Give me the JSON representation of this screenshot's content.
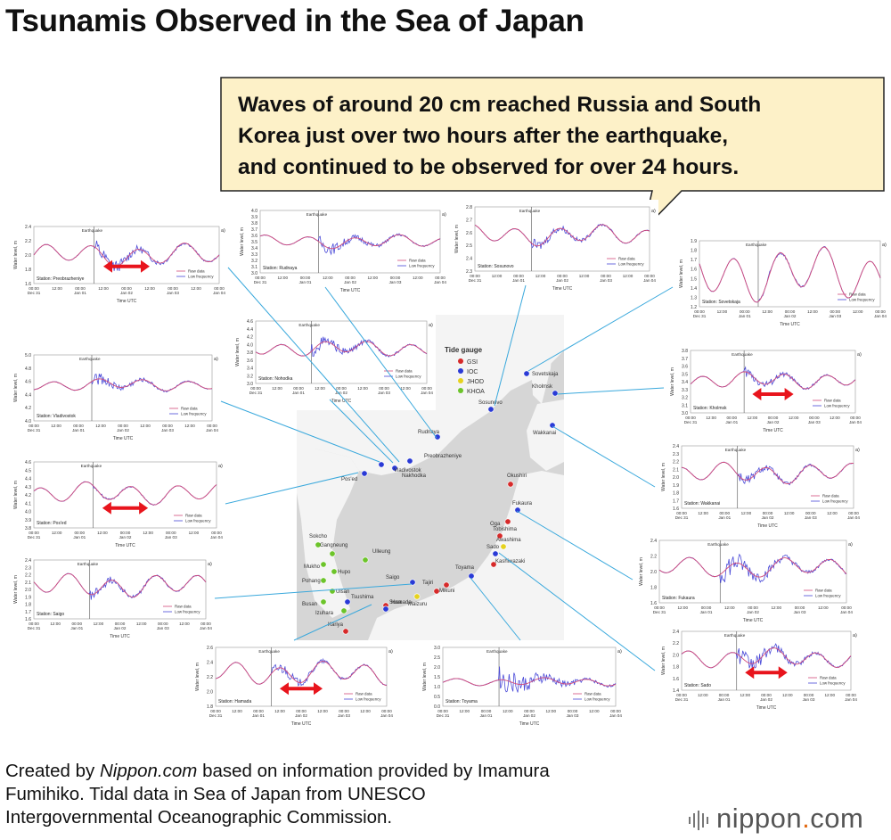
{
  "title": "Tsunamis Observed in the Sea of Japan",
  "callout": {
    "lines": [
      "Waves of around 20 cm reached Russia and South",
      "Korea just over two hours after the earthquake,",
      "and continued to be observed for over 24 hours."
    ]
  },
  "footer": {
    "line1_prefix": "Created by ",
    "line1_em": "Nippon.com",
    "line1_suffix": " based on information provided by Imamura",
    "line2": "Fumihiko. Tidal data in Sea of Japan from UNESCO",
    "line3": "Intergovernmental Oceanographic Commission."
  },
  "logo": {
    "name": "nippon",
    "dot": ".",
    "tld": "com"
  },
  "colors": {
    "raw": "#4a4ad8",
    "low": "#d24b7a",
    "arrow": "#e8141c",
    "leader": "#39a8dc",
    "map_land": "#f4f4f4",
    "map_sea": "#d6d6d6"
  },
  "map": {
    "legend_title": "Tide gauge",
    "legend": [
      {
        "label": "GSI",
        "color": "#d62a2a"
      },
      {
        "label": "IOC",
        "color": "#2a3ad6"
      },
      {
        "label": "JHOD",
        "color": "#e6d21e"
      },
      {
        "label": "KHOA",
        "color": "#6cc42a"
      }
    ],
    "stations": [
      {
        "name": "Sovetskaja",
        "c": "#2a3ad6"
      },
      {
        "name": "Sosunovo",
        "c": "#2a3ad6"
      },
      {
        "name": "Kholmsk",
        "c": "#2a3ad6"
      },
      {
        "name": "Wakkanai",
        "c": "#2a3ad6"
      },
      {
        "name": "Rudnaya",
        "c": "#2a3ad6"
      },
      {
        "name": "Preobrazheniye",
        "c": "#2a3ad6"
      },
      {
        "name": "Nakhodka",
        "c": "#2a3ad6"
      },
      {
        "name": "Vladivostok",
        "c": "#2a3ad6"
      },
      {
        "name": "Pos'ed",
        "c": "#2a3ad6"
      },
      {
        "name": "Okushiri",
        "c": "#d62a2a"
      },
      {
        "name": "Fukaura",
        "c": "#2a3ad6"
      },
      {
        "name": "Oga",
        "c": "#d62a2a"
      },
      {
        "name": "Tobishima",
        "c": "#d62a2a"
      },
      {
        "name": "Awashima",
        "c": "#e6d21e"
      },
      {
        "name": "Sado",
        "c": "#2a3ad6"
      },
      {
        "name": "Kashiwazaki",
        "c": "#d62a2a"
      },
      {
        "name": "Toyama",
        "c": "#2a3ad6"
      },
      {
        "name": "Mikuni",
        "c": "#d62a2a"
      },
      {
        "name": "Tajiri",
        "c": "#d62a2a"
      },
      {
        "name": "Maizuru",
        "c": "#e6d21e"
      },
      {
        "name": "Saigo",
        "c": "#2a3ad6"
      },
      {
        "name": "Hamada",
        "c": "#d62a2a"
      },
      {
        "name": "Susa",
        "c": "#2a3ad6"
      },
      {
        "name": "Kariya",
        "c": "#d62a2a"
      },
      {
        "name": "Sokcho",
        "c": "#6cc42a"
      },
      {
        "name": "Ulleung",
        "c": "#6cc42a"
      },
      {
        "name": "Gangneung",
        "c": "#6cc42a"
      },
      {
        "name": "Mukho",
        "c": "#6cc42a"
      },
      {
        "name": "Hupo",
        "c": "#6cc42a"
      },
      {
        "name": "Pohang",
        "c": "#6cc42a"
      },
      {
        "name": "Ulsan",
        "c": "#6cc42a"
      },
      {
        "name": "Busan",
        "c": "#6cc42a"
      },
      {
        "name": "Tsushima",
        "c": "#2a3ad6"
      },
      {
        "name": "Izuhara",
        "c": "#6cc42a"
      }
    ]
  },
  "panel_common": {
    "xticks": [
      "00:00\nDec 31",
      "12:00",
      "00:00\nJan 01",
      "12:00",
      "00:00\nJan 02",
      "12:00",
      "00:00\nJan 03",
      "12:00",
      "00:00\nJan 04"
    ],
    "xlabel": "Time UTC",
    "ylabel": "Water level, m",
    "legend_raw": "Raw data",
    "legend_low": "Low frequency",
    "eq_label": "Earthquake",
    "panel_letter": "a)"
  },
  "chart_data": [
    {
      "type": "line",
      "station": "Station: Preobrazheniye",
      "ylim": [
        1.6,
        2.4
      ],
      "yticks": [
        "1.6",
        "1.8",
        "2.0",
        "2.2",
        "2.4"
      ],
      "base": 2.0,
      "amp": 0.12,
      "noise": 0.14,
      "arrow": true
    },
    {
      "type": "line",
      "station": "Station: Rudnaya",
      "ylim": [
        3.0,
        4.0
      ],
      "yticks": [
        "3.0",
        "3.1",
        "3.2",
        "3.3",
        "3.4",
        "3.5",
        "3.6",
        "3.7",
        "3.8",
        "3.9",
        "4.0"
      ],
      "base": 3.5,
      "amp": 0.08,
      "noise": 0.12,
      "arrow": false
    },
    {
      "type": "line",
      "station": "Station: Sosunovo",
      "ylim": [
        2.3,
        2.8
      ],
      "yticks": [
        "2.3",
        "2.4",
        "2.5",
        "2.6",
        "2.7",
        "2.8"
      ],
      "base": 2.58,
      "amp": 0.06,
      "noise": 0.05,
      "arrow": false
    },
    {
      "type": "line",
      "station": "Station: Sovetskaja",
      "ylim": [
        1.2,
        1.9
      ],
      "yticks": [
        "1.2",
        "1.3",
        "1.4",
        "1.5",
        "1.6",
        "1.7",
        "1.8",
        "1.9"
      ],
      "base": 1.55,
      "amp": 0.22,
      "noise": 0.03,
      "arrow": false
    },
    {
      "type": "line",
      "station": "Station: Nohodka",
      "ylim": [
        3.0,
        4.6
      ],
      "yticks": [
        "3.0",
        "3.2",
        "3.4",
        "3.6",
        "3.8",
        "4.0",
        "4.2",
        "4.4",
        "4.6"
      ],
      "base": 3.9,
      "amp": 0.15,
      "noise": 0.2,
      "arrow": false
    },
    {
      "type": "line",
      "station": "Station: Vladivostok",
      "ylim": [
        4.0,
        5.0
      ],
      "yticks": [
        "4.0",
        "4.2",
        "4.4",
        "4.6",
        "4.8",
        "5.0"
      ],
      "base": 4.55,
      "amp": 0.07,
      "noise": 0.1,
      "arrow": false
    },
    {
      "type": "line",
      "station": "Station: Kholmsk",
      "ylim": [
        3.0,
        3.8
      ],
      "yticks": [
        "3.0",
        "3.1",
        "3.2",
        "3.3",
        "3.4",
        "3.5",
        "3.6",
        "3.7",
        "3.8"
      ],
      "base": 3.42,
      "amp": 0.08,
      "noise": 0.08,
      "arrow": true
    },
    {
      "type": "line",
      "station": "Station: Pos'ed",
      "ylim": [
        3.8,
        4.6
      ],
      "yticks": [
        "3.8",
        "3.9",
        "4.0",
        "4.1",
        "4.2",
        "4.3",
        "4.4",
        "4.5",
        "4.6"
      ],
      "base": 4.22,
      "amp": 0.1,
      "noise": 0.02,
      "arrow": true
    },
    {
      "type": "line",
      "station": "Station: Wakkanai",
      "ylim": [
        1.6,
        2.4
      ],
      "yticks": [
        "1.6",
        "1.7",
        "1.8",
        "1.9",
        "2.0",
        "2.1",
        "2.2",
        "2.3",
        "2.4"
      ],
      "base": 2.05,
      "amp": 0.1,
      "noise": 0.08,
      "arrow": false
    },
    {
      "type": "line",
      "station": "Station: Saigo",
      "ylim": [
        1.6,
        2.4
      ],
      "yticks": [
        "1.6",
        "1.7",
        "1.8",
        "1.9",
        "2.0",
        "2.1",
        "2.2",
        "2.3",
        "2.4"
      ],
      "base": 2.05,
      "amp": 0.12,
      "noise": 0.08,
      "arrow": false
    },
    {
      "type": "line",
      "station": "Station: Fukaura",
      "ylim": [
        1.6,
        2.4
      ],
      "yticks": [
        "1.6",
        "1.8",
        "2.0",
        "2.2",
        "2.4"
      ],
      "base": 2.05,
      "amp": 0.1,
      "noise": 0.18,
      "arrow": false
    },
    {
      "type": "line",
      "station": "Station: Hamada",
      "ylim": [
        1.8,
        2.6
      ],
      "yticks": [
        "1.8",
        "2.0",
        "2.2",
        "2.4",
        "2.6"
      ],
      "base": 2.25,
      "amp": 0.12,
      "noise": 0.1,
      "arrow": true
    },
    {
      "type": "line",
      "station": "Station: Toyama",
      "ylim": [
        0.0,
        3.0
      ],
      "yticks": [
        "0.0",
        "0.5",
        "1.0",
        "1.5",
        "2.0",
        "2.5",
        "3.0"
      ],
      "base": 1.25,
      "amp": 0.15,
      "noise": 0.8,
      "arrow": false
    },
    {
      "type": "line",
      "station": "Station: Sado",
      "ylim": [
        1.4,
        2.4
      ],
      "yticks": [
        "1.4",
        "1.6",
        "1.8",
        "2.0",
        "2.2",
        "2.4"
      ],
      "base": 1.95,
      "amp": 0.12,
      "noise": 0.2,
      "arrow": true
    }
  ]
}
